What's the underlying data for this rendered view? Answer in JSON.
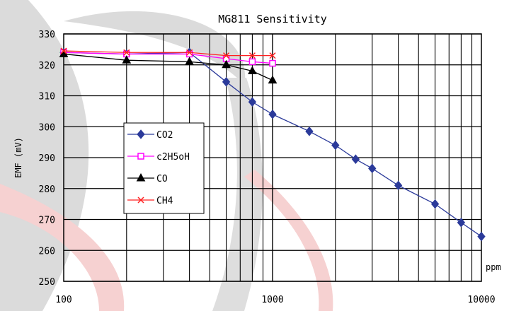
{
  "chart_data": {
    "type": "line",
    "title": "MG811 Sensitivity",
    "xlabel": "ppm",
    "ylabel": "EMF (mV)",
    "x_scale": "log",
    "xlim": [
      100,
      10000
    ],
    "ylim": [
      250,
      330
    ],
    "x_ticks": [
      {
        "value": 100,
        "label": "100"
      },
      {
        "value": 1000,
        "label": "1000"
      },
      {
        "value": 10000,
        "label": "10000"
      }
    ],
    "y_ticks": [
      {
        "value": 250,
        "label": "250"
      },
      {
        "value": 260,
        "label": "260"
      },
      {
        "value": 270,
        "label": "270"
      },
      {
        "value": 280,
        "label": "280"
      },
      {
        "value": 290,
        "label": "290"
      },
      {
        "value": 300,
        "label": "300"
      },
      {
        "value": 310,
        "label": "310"
      },
      {
        "value": 320,
        "label": "320"
      },
      {
        "value": 330,
        "label": "330"
      }
    ],
    "grid": true,
    "legend_position": "left-middle",
    "series": [
      {
        "name": "CO2",
        "color": "#2B3A9A",
        "marker": "diamond",
        "x": [
          100,
          200,
          400,
          600,
          800,
          1000,
          1500,
          2000,
          2500,
          3000,
          4000,
          6000,
          8000,
          10000
        ],
        "y": [
          324,
          323.5,
          324,
          314.5,
          308,
          304,
          298.5,
          294,
          289.5,
          286.5,
          281,
          275,
          269,
          264.5
        ]
      },
      {
        "name": "c2H5oH",
        "color": "#FF00FF",
        "marker": "open-square",
        "x": [
          100,
          200,
          400,
          600,
          800,
          1000
        ],
        "y": [
          324,
          323.5,
          323.5,
          322,
          321,
          320.5
        ]
      },
      {
        "name": "CO",
        "color": "#000000",
        "marker": "triangle",
        "x": [
          100,
          200,
          400,
          600,
          800,
          1000
        ],
        "y": [
          323.5,
          321.5,
          321,
          320,
          318,
          315
        ]
      },
      {
        "name": "CH4",
        "color": "#FF2020",
        "marker": "x",
        "x": [
          100,
          200,
          400,
          600,
          800,
          1000
        ],
        "y": [
          324.5,
          324,
          324,
          323,
          323,
          323
        ]
      }
    ]
  }
}
